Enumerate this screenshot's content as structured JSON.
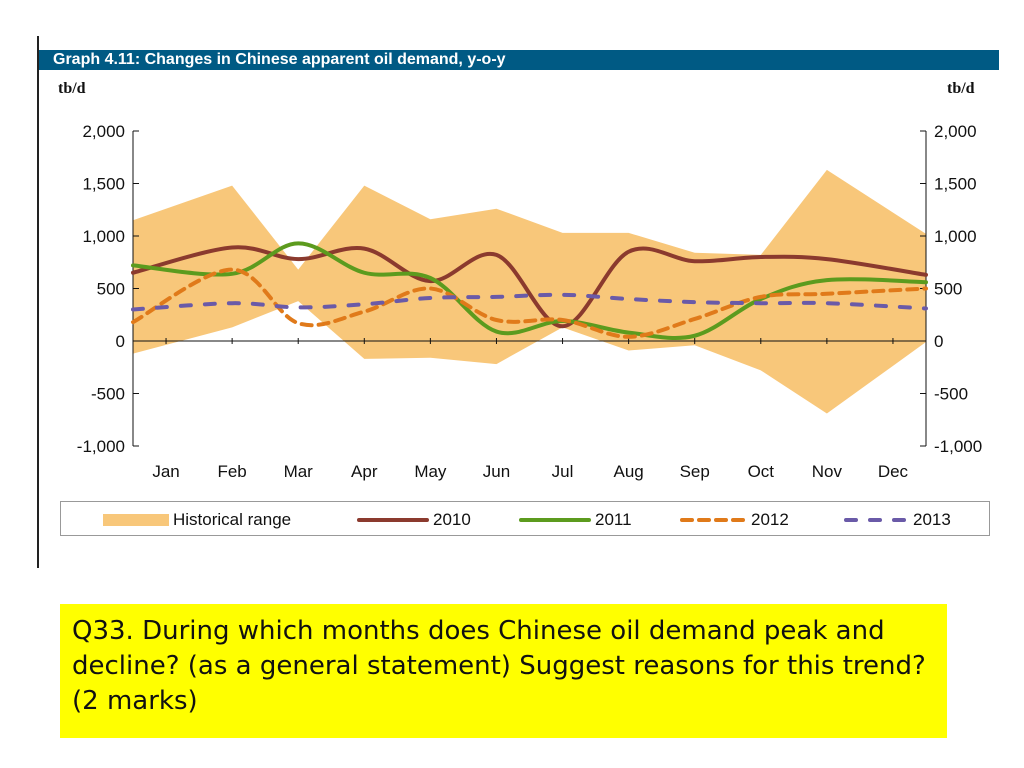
{
  "title": "Graph 4.11: Changes in Chinese apparent oil demand, y-o-y",
  "question": "Q33.  During which months does Chinese oil demand peak and decline? (as a general statement)    Suggest reasons for this trend?  (2 marks)",
  "colors": {
    "title_bar": "#005a84",
    "historical_range": "#f8c77a",
    "s2010": "#8b3a2e",
    "s2011": "#5c9b1e",
    "s2012": "#e07a1a",
    "s2013": "#6a5aa8",
    "question_bg": "#ffff00"
  },
  "chart_data": {
    "type": "line",
    "title": "Graph 4.11: Changes in Chinese apparent oil demand, y-o-y",
    "ylabel_left": "tb/d",
    "ylabel_right": "tb/d",
    "categories": [
      "Jan",
      "Feb",
      "Mar",
      "Apr",
      "May",
      "Jun",
      "Jul",
      "Aug",
      "Sep",
      "Oct",
      "Nov",
      "Dec"
    ],
    "ylim": [
      -1000,
      2000
    ],
    "yticks_left": [
      "2,000",
      "1,500",
      "1,000",
      "500",
      "0",
      "-500",
      "-1,000"
    ],
    "yticks_right": [
      "2,000",
      "1,500",
      "1,000",
      "500",
      "0",
      "-500",
      "-1,000"
    ],
    "ytick_values": [
      2000,
      1500,
      1000,
      500,
      0,
      -500,
      -1000
    ],
    "legend": "bottom",
    "grid": false,
    "historical_range": {
      "name": "Historical range",
      "upper": [
        1150,
        1480,
        680,
        1480,
        1160,
        1260,
        1030,
        1030,
        840,
        820,
        1630,
        1020
      ],
      "lower": [
        -120,
        130,
        380,
        -170,
        -160,
        -220,
        130,
        -90,
        -40,
        -280,
        -690,
        -10
      ]
    },
    "series": [
      {
        "name": "2010",
        "style": "solid",
        "values": [
          650,
          890,
          780,
          880,
          570,
          820,
          140,
          850,
          760,
          800,
          780,
          630
        ]
      },
      {
        "name": "2011",
        "style": "solid",
        "values": [
          720,
          640,
          930,
          650,
          600,
          90,
          190,
          80,
          50,
          400,
          580,
          560
        ]
      },
      {
        "name": "2012",
        "style": "dashed",
        "values": [
          180,
          680,
          170,
          280,
          500,
          200,
          200,
          40,
          210,
          420,
          450,
          500
        ]
      },
      {
        "name": "2013",
        "style": "dashed",
        "values": [
          300,
          360,
          320,
          350,
          410,
          420,
          440,
          400,
          370,
          360,
          360,
          310
        ]
      }
    ]
  }
}
